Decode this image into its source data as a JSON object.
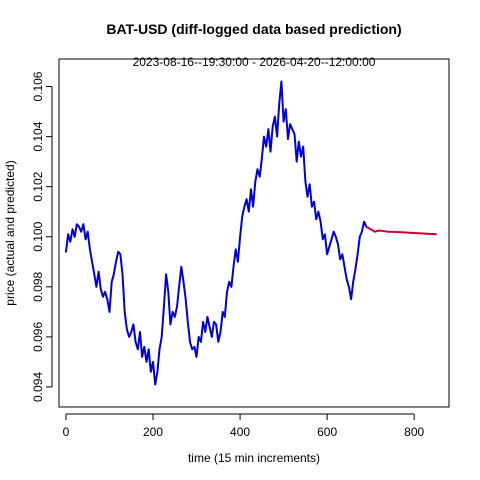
{
  "chart_data": {
    "type": "line",
    "title": "BAT-USD (diff-logged data based prediction)",
    "subtitle": "2023-08-16--19:30:00  -  2026-04-20--12:00:00",
    "xlabel": "time (15 min increments)",
    "ylabel": "price (actual and predicted)",
    "xlim": [
      -16,
      880
    ],
    "ylim": [
      0.0932,
      0.1071
    ],
    "x_ticks": [
      0,
      200,
      400,
      600,
      800
    ],
    "x_tick_labels": [
      "0",
      "200",
      "400",
      "600",
      "800"
    ],
    "y_ticks": [
      0.094,
      0.096,
      0.098,
      0.1,
      0.102,
      0.104,
      0.106
    ],
    "y_tick_labels": [
      "0.094",
      "0.096",
      "0.098",
      "0.100",
      "0.102",
      "0.104",
      "0.106"
    ],
    "grid": false,
    "legend": "none",
    "series": [
      {
        "color": "#0000dd",
        "x": [
          0,
          5,
          10,
          15,
          20,
          25,
          30,
          35,
          40,
          45,
          50,
          55,
          60,
          65,
          70,
          75,
          80,
          85,
          90,
          95,
          100,
          105,
          110,
          115,
          120,
          125,
          130,
          135,
          140,
          145,
          150,
          155,
          160,
          165,
          170,
          175,
          180,
          185,
          190,
          195,
          200,
          205,
          210,
          215,
          220,
          225,
          230,
          235,
          240,
          245,
          250,
          255,
          260,
          265,
          270,
          275,
          280,
          285,
          290,
          295,
          300,
          305,
          310,
          315,
          320,
          325,
          330,
          335,
          340,
          345,
          350,
          355,
          360,
          365,
          370,
          375,
          380,
          385,
          390,
          395,
          400,
          405,
          410,
          415,
          420,
          425,
          430,
          435,
          440,
          445,
          450,
          455,
          460,
          465,
          470,
          475,
          480,
          485,
          490,
          495,
          500,
          505,
          510,
          515,
          520,
          525,
          530,
          535,
          540,
          545,
          550,
          555,
          560,
          565,
          570,
          575,
          580,
          585,
          590,
          595,
          600,
          605,
          610,
          615,
          620,
          625,
          630,
          635,
          640,
          645,
          650,
          655,
          660,
          665,
          670,
          675,
          680,
          685,
          690
        ],
        "y": [
          0.0994,
          0.1001,
          0.0998,
          0.1003,
          0.1,
          0.1005,
          0.1004,
          0.1002,
          0.1005,
          0.0999,
          0.1002,
          0.0995,
          0.099,
          0.0985,
          0.098,
          0.0986,
          0.0979,
          0.0976,
          0.0978,
          0.0975,
          0.097,
          0.0982,
          0.0985,
          0.099,
          0.0994,
          0.0993,
          0.0985,
          0.097,
          0.0963,
          0.096,
          0.0962,
          0.0965,
          0.0958,
          0.0955,
          0.0962,
          0.0952,
          0.0956,
          0.095,
          0.0955,
          0.0946,
          0.095,
          0.0941,
          0.0946,
          0.0955,
          0.096,
          0.0972,
          0.0985,
          0.0978,
          0.0965,
          0.097,
          0.0968,
          0.0972,
          0.098,
          0.0988,
          0.0982,
          0.0975,
          0.0966,
          0.0958,
          0.0955,
          0.0956,
          0.0952,
          0.096,
          0.0958,
          0.0966,
          0.0962,
          0.0968,
          0.0964,
          0.096,
          0.0966,
          0.0965,
          0.0958,
          0.0962,
          0.097,
          0.0968,
          0.0978,
          0.0982,
          0.098,
          0.0988,
          0.0995,
          0.099,
          0.1,
          0.1008,
          0.1012,
          0.1015,
          0.101,
          0.1019,
          0.1012,
          0.1022,
          0.1027,
          0.1024,
          0.1031,
          0.104,
          0.1036,
          0.1043,
          0.1034,
          0.1044,
          0.1048,
          0.104,
          0.1053,
          0.1062,
          0.1046,
          0.1051,
          0.1039,
          0.1045,
          0.1043,
          0.1041,
          0.103,
          0.1038,
          0.1032,
          0.1036,
          0.1022,
          0.1016,
          0.1021,
          0.1012,
          0.1014,
          0.1007,
          0.101,
          0.1006,
          0.0999,
          0.1001,
          0.0993,
          0.0996,
          0.0999,
          0.1002,
          0.1,
          0.0997,
          0.0991,
          0.0993,
          0.0988,
          0.0983,
          0.098,
          0.0975,
          0.0982,
          0.0987,
          0.0993,
          0.1,
          0.1002,
          0.1006,
          0.1004
        ]
      },
      {
        "color": "#cc0033",
        "x": [
          690,
          700,
          710,
          720,
          740,
          760,
          780,
          800,
          820,
          840,
          850
        ],
        "y": [
          0.1004,
          0.1003,
          0.1002,
          0.10025,
          0.1002,
          0.10019,
          0.10017,
          0.10015,
          0.10013,
          0.10011,
          0.1001
        ]
      }
    ]
  }
}
